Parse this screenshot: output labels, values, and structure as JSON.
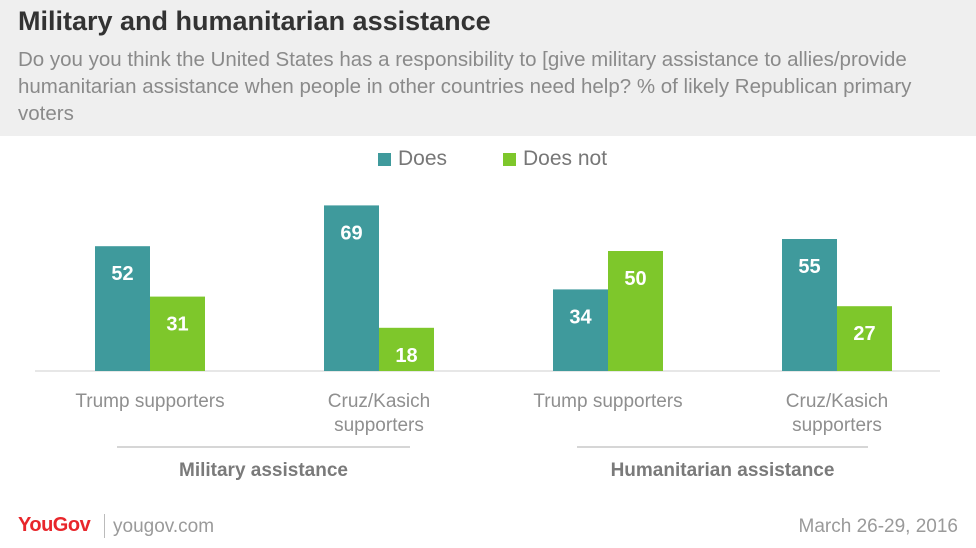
{
  "header": {
    "title": "Military and humanitarian assistance",
    "subtitle": "Do you you think the United States has a responsibility to [give military assistance to allies/provide humanitarian assistance when people in other countries need help? % of likely Republican primary voters"
  },
  "colors": {
    "does": "#3f9a9c",
    "does_not": "#7ec72b",
    "label_text": "#ffffff",
    "category_text": "#8f8f8f",
    "group_text": "#7a7a7a"
  },
  "chart_data": {
    "type": "bar",
    "title": "Military and humanitarian assistance",
    "ylim": [
      0,
      100
    ],
    "grid": false,
    "legend_position": "top-center",
    "groups": [
      {
        "label": "Military assistance",
        "categories": [
          "Trump supporters",
          "Cruz/Kasich supporters"
        ]
      },
      {
        "label": "Humanitarian assistance",
        "categories": [
          "Trump supporters",
          "Cruz/Kasich supporters"
        ]
      }
    ],
    "categories": [
      "Trump supporters",
      "Cruz/Kasich supporters",
      "Trump supporters",
      "Cruz/Kasich supporters"
    ],
    "series": [
      {
        "name": "Does",
        "values": [
          52,
          69,
          34,
          55
        ]
      },
      {
        "name": "Does not",
        "values": [
          31,
          18,
          50,
          27
        ]
      }
    ]
  },
  "footer": {
    "brand": "YouGov",
    "site": "yougov.com",
    "date": "March 26-29, 2016"
  }
}
